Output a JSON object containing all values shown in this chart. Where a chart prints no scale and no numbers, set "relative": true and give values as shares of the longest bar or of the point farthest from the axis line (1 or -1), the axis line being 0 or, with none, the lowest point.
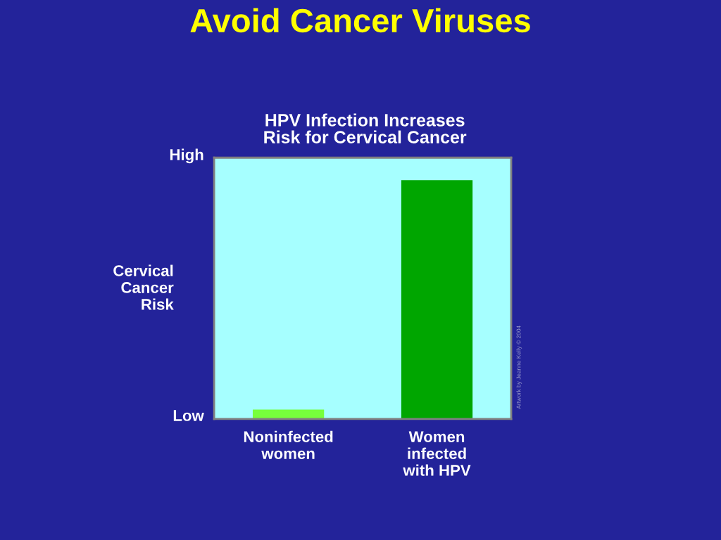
{
  "chart_data": {
    "type": "bar",
    "title": "Avoid Cancer Viruses",
    "subtitle": "HPV Infection Increases\nRisk for Cervical Cancer",
    "ylabel": "Cervical\nCancer\nRisk",
    "categories": [
      "Noninfected\nwomen",
      "Women\ninfected\nwith HPV"
    ],
    "values": [
      0.04,
      1
    ],
    "colors": [
      "#77ff3c",
      "#00a600"
    ],
    "relative": true,
    "grid": false,
    "legend": false,
    "annotations": [
      "High",
      "Low",
      "Artwork by Jeanne Kelly © 2004"
    ]
  }
}
